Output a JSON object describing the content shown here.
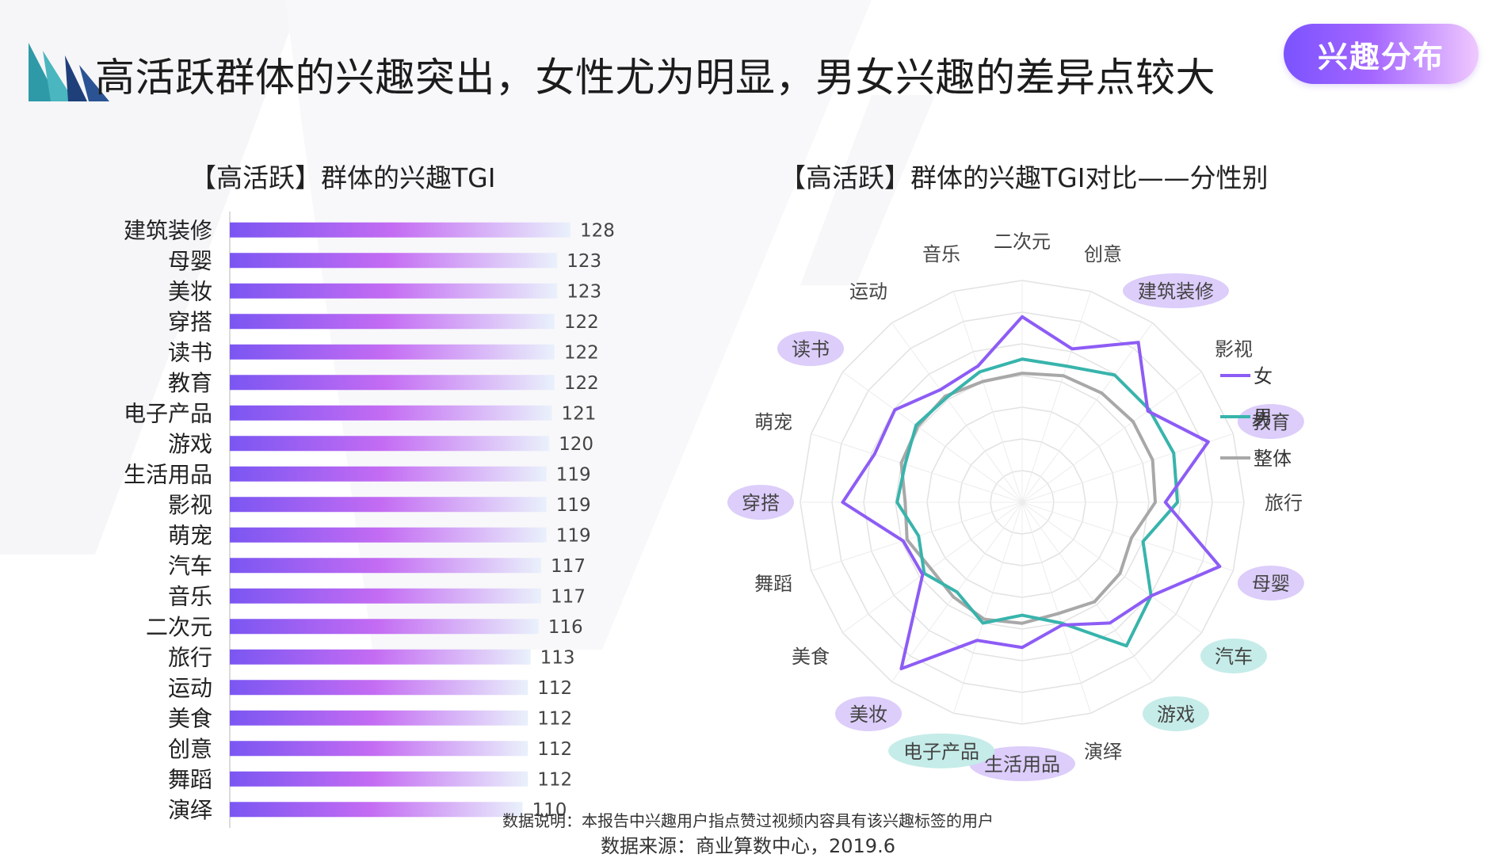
{
  "header": {
    "title": "高活跃群体的兴趣突出，女性尤为明显，男女兴趣的差异点较大",
    "tag": "兴趣分布"
  },
  "colors": {
    "bar_start": "#7b56f2",
    "bar_mid": "#c46cf3",
    "bar_end": "#e9f1fb",
    "female": "#8d5cf5",
    "male": "#38b4ac",
    "overall": "#a8a8a8",
    "highlight_female": "#dccdfa",
    "highlight_male": "#c5ece8"
  },
  "chart_data": [
    {
      "type": "bar",
      "orientation": "horizontal",
      "title": "【高活跃】群体的兴趣TGI",
      "categories": [
        "建筑装修",
        "母婴",
        "美妆",
        "穿搭",
        "读书",
        "教育",
        "电子产品",
        "游戏",
        "生活用品",
        "影视",
        "萌宠",
        "汽车",
        "音乐",
        "二次元",
        "旅行",
        "运动",
        "美食",
        "创意",
        "舞蹈",
        "演绎"
      ],
      "values": [
        128,
        123,
        123,
        122,
        122,
        122,
        121,
        120,
        119,
        119,
        119,
        117,
        117,
        116,
        113,
        112,
        112,
        112,
        112,
        110
      ],
      "xlim": [
        0,
        128
      ]
    },
    {
      "type": "radar",
      "title": "【高活跃】群体的兴趣TGI对比——分性别",
      "axes": [
        "二次元",
        "创意",
        "建筑装修",
        "影视",
        "教育",
        "旅行",
        "母婴",
        "汽车",
        "游戏",
        "演绎",
        "生活用品",
        "电子产品",
        "美妆",
        "美食",
        "舞蹈",
        "穿搭",
        "萌宠",
        "读书",
        "运动",
        "音乐"
      ],
      "highlighted_female": [
        "建筑装修",
        "教育",
        "母婴",
        "生活用品",
        "美妆",
        "穿搭",
        "读书"
      ],
      "highlighted_male": [
        "汽车",
        "游戏",
        "电子产品"
      ],
      "rlim": [
        40,
        150
      ],
      "series": [
        {
          "name": "女",
          "values": [
            132,
            120,
            138,
            117,
            137,
            111,
            143,
            119,
            114,
            104,
            112,
            112,
            142,
            101,
            102,
            129,
            117,
            118,
            109,
            111
          ]
        },
        {
          "name": "男",
          "values": [
            111,
            111,
            118,
            118,
            119,
            117,
            103,
            119,
            128,
            103,
            96,
            103,
            95,
            100,
            94,
            102,
            101,
            105,
            104,
            108
          ]
        },
        {
          "name": "整体",
          "values": [
            104,
            106,
            107,
            108,
            108,
            106,
            97,
            100,
            101,
            98,
            100,
            101,
            98,
            96,
            100,
            98,
            103,
            104,
            105,
            103
          ]
        }
      ],
      "legend_position": "right"
    }
  ],
  "footer": {
    "note": "数据说明：本报告中兴趣用户指点赞过视频内容具有该兴趣标签的用户",
    "source": "数据来源：商业算数中心，2019.6"
  }
}
